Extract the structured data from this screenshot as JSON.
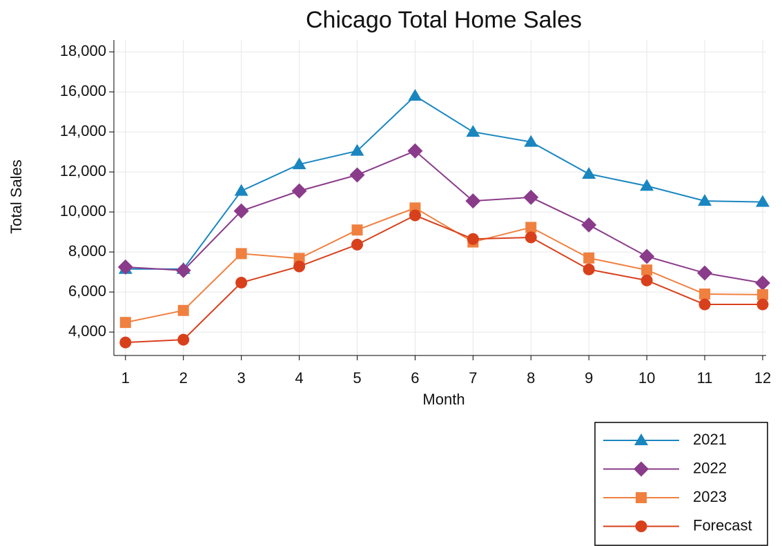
{
  "chart_data": {
    "type": "line",
    "title": "Chicago Total Home Sales",
    "x_label": "Month",
    "y_label": "Total Sales",
    "x": [
      1,
      2,
      3,
      4,
      5,
      6,
      7,
      8,
      9,
      10,
      11,
      12
    ],
    "xlim": [
      0.8,
      12.06
    ],
    "xticks": [
      1,
      2,
      3,
      4,
      5,
      6,
      7,
      8,
      9,
      10,
      11,
      12
    ],
    "ylim": [
      2830,
      18590
    ],
    "yticks": [
      {
        "value": 4000,
        "label": "4,000"
      },
      {
        "value": 6000,
        "label": "6,000"
      },
      {
        "value": 8000,
        "label": "8,000"
      },
      {
        "value": 10000,
        "label": "10,000"
      },
      {
        "value": 12000,
        "label": "12,000"
      },
      {
        "value": 14000,
        "label": "14,000"
      },
      {
        "value": 16000,
        "label": "16,000"
      },
      {
        "value": 18000,
        "label": "18,000"
      }
    ],
    "grid": true,
    "legend": "lower right",
    "series": [
      {
        "name": "2021",
        "color": "#1a86c0",
        "marker": "triangle",
        "values": [
          7150,
          7150,
          11050,
          12380,
          13050,
          15800,
          14000,
          13500,
          11900,
          11300,
          10550,
          10500
        ]
      },
      {
        "name": "2022",
        "color": "#8a3b8a",
        "marker": "diamond",
        "values": [
          7250,
          7080,
          10050,
          11050,
          11850,
          13050,
          10550,
          10730,
          9350,
          7780,
          6950,
          6450
        ]
      },
      {
        "name": "2023",
        "color": "#f08040",
        "marker": "square",
        "values": [
          4480,
          5080,
          7920,
          7680,
          9100,
          10200,
          8500,
          9230,
          7700,
          7100,
          5900,
          5870
        ]
      },
      {
        "name": "Forecast",
        "color": "#d8401c",
        "marker": "circle",
        "values": [
          3480,
          3620,
          6470,
          7280,
          8370,
          9830,
          8650,
          8730,
          7130,
          6580,
          5380,
          5380
        ]
      }
    ]
  }
}
